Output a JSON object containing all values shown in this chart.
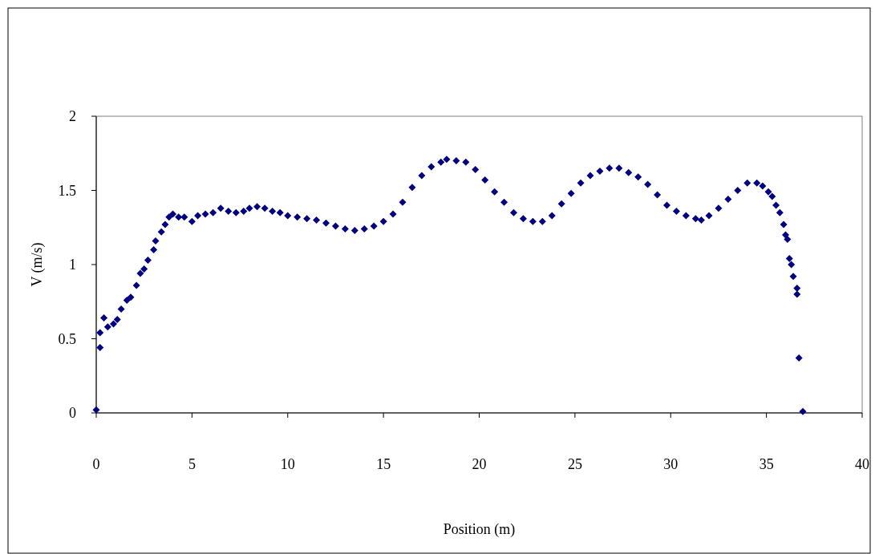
{
  "chart_data": {
    "type": "scatter",
    "xlabel": "Position (m)",
    "ylabel": "V (m/s)",
    "xlim": [
      0,
      40
    ],
    "xticks": [
      0,
      5,
      10,
      15,
      20,
      25,
      30,
      35,
      40
    ],
    "ylim": [
      0,
      2
    ],
    "yticks": [
      0,
      0.5,
      1,
      1.5,
      2
    ],
    "marker": "diamond",
    "grid": false,
    "series": [
      {
        "color": "#000080",
        "x": [
          0,
          0.2,
          0.2,
          0.4,
          0.6,
          0.9,
          1.1,
          1.3,
          1.6,
          1.8,
          2.1,
          2.3,
          2.5,
          2.7,
          3,
          3.1,
          3.4,
          3.6,
          3.8,
          4,
          4.3,
          4.6,
          5,
          5.3,
          5.7,
          6.1,
          6.5,
          6.9,
          7.3,
          7.7,
          8,
          8.4,
          8.8,
          9.2,
          9.6,
          10,
          10.5,
          11,
          11.5,
          12,
          12.5,
          13,
          13.5,
          14,
          14.5,
          15,
          15.5,
          16,
          16.5,
          17,
          17.5,
          18,
          18.3,
          18.8,
          19.3,
          19.8,
          20.3,
          20.8,
          21.3,
          21.8,
          22.3,
          22.8,
          23.3,
          23.8,
          24.3,
          24.8,
          25.3,
          25.8,
          26.3,
          26.8,
          27.3,
          27.8,
          28.3,
          28.8,
          29.3,
          29.8,
          30.3,
          30.8,
          31.3,
          31.6,
          32,
          32.5,
          33,
          33.5,
          34,
          34.5,
          34.8,
          35.1,
          35.3,
          35.5,
          35.7,
          35.9,
          36,
          36.1,
          36.2,
          36.3,
          36.4,
          36.6,
          36.6,
          36.7,
          36.9
        ],
        "values": [
          0.02,
          0.44,
          0.54,
          0.64,
          0.58,
          0.6,
          0.63,
          0.7,
          0.76,
          0.78,
          0.86,
          0.94,
          0.97,
          1.03,
          1.1,
          1.16,
          1.22,
          1.27,
          1.32,
          1.34,
          1.32,
          1.32,
          1.29,
          1.33,
          1.34,
          1.35,
          1.38,
          1.36,
          1.35,
          1.36,
          1.38,
          1.39,
          1.38,
          1.36,
          1.35,
          1.33,
          1.32,
          1.31,
          1.3,
          1.28,
          1.26,
          1.24,
          1.23,
          1.24,
          1.26,
          1.29,
          1.34,
          1.42,
          1.52,
          1.6,
          1.66,
          1.69,
          1.71,
          1.7,
          1.69,
          1.64,
          1.57,
          1.49,
          1.42,
          1.35,
          1.31,
          1.29,
          1.29,
          1.33,
          1.41,
          1.48,
          1.55,
          1.6,
          1.63,
          1.65,
          1.65,
          1.62,
          1.59,
          1.54,
          1.47,
          1.4,
          1.36,
          1.33,
          1.31,
          1.3,
          1.33,
          1.38,
          1.44,
          1.5,
          1.55,
          1.55,
          1.53,
          1.49,
          1.46,
          1.4,
          1.35,
          1.27,
          1.2,
          1.17,
          1.04,
          1,
          0.92,
          0.84,
          0.8,
          0.37,
          0.01
        ]
      }
    ]
  }
}
